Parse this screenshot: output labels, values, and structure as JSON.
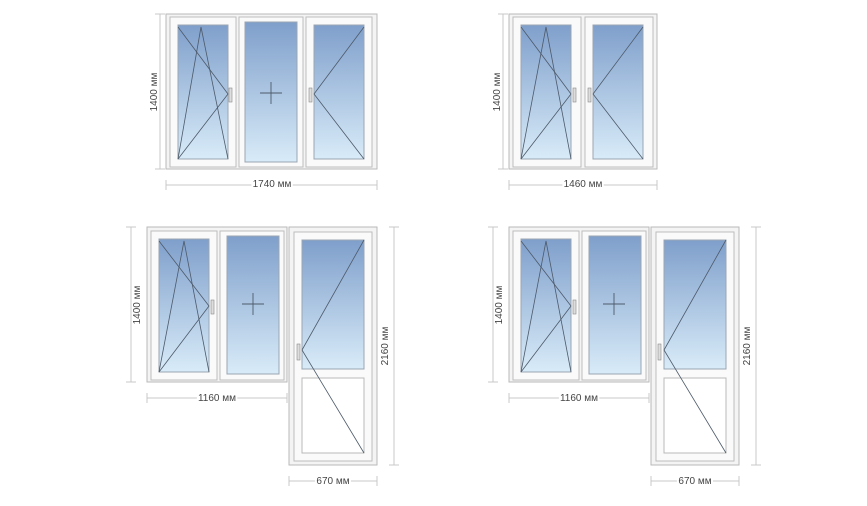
{
  "colors": {
    "frame": "#f4f4f4",
    "frame_stroke": "#b9b9b9",
    "glass_top": "#7f9fcb",
    "glass_bottom": "#d8ebf8",
    "dimension_line": "#c9c9c9",
    "opening_lines": "#4d5a6a"
  },
  "windows": [
    {
      "id": "three-sash",
      "sashes": [
        "tilt-turn-left",
        "fixed",
        "turn-right"
      ],
      "labels": {
        "height": "1400 мм",
        "width": "1740 мм"
      }
    },
    {
      "id": "two-sash",
      "sashes": [
        "tilt-turn-left",
        "turn-right"
      ],
      "labels": {
        "height": "1400 мм",
        "width": "1460 мм"
      }
    },
    {
      "id": "balcony-block-left",
      "sashes": [
        "tilt-turn-left",
        "fixed",
        "door-turn-right"
      ],
      "labels": {
        "height": "1400 мм",
        "width": "1160 мм",
        "door_height": "2160 мм",
        "door_width": "670 мм"
      }
    },
    {
      "id": "balcony-block-right",
      "sashes": [
        "tilt-turn-left",
        "fixed",
        "door-turn-left"
      ],
      "labels": {
        "height": "1400 мм",
        "width": "1160 мм",
        "door_height": "2160 мм",
        "door_width": "670 мм"
      }
    }
  ]
}
